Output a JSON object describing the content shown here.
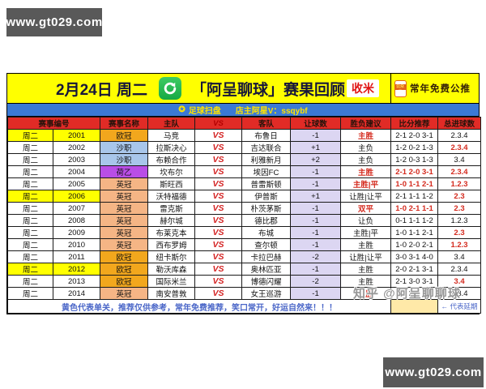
{
  "site": {
    "url_top": "www.gt029.com",
    "url_bottom": "www.gt029.com"
  },
  "header": {
    "date": "2月24日 周二",
    "title": "「阿呈聊球」赛果回顾",
    "shoumi_label": "收米",
    "gzh_label": "公众号",
    "promo_label": "常年免费公推"
  },
  "subheader": {
    "star_glyph": "✪",
    "scan_label": "足球扫盘",
    "owner_label": "店主阿星V：ssqybf"
  },
  "table": {
    "vs_label": "VS",
    "headers": [
      "赛事编号",
      "赛事名称",
      "主队",
      "VS",
      "客队",
      "让球数",
      "胜负建议",
      "比分推荐",
      "总进球数"
    ],
    "rows": [
      {
        "day": "周二",
        "id": "2001",
        "league": "欧冠",
        "league_color": "#f2a71d",
        "home": "马竞",
        "away": "布鲁日",
        "handicap": "-1",
        "advice": "主胜",
        "advice_red": true,
        "score": "2-1 2-0 3-1",
        "score_red": false,
        "goals": "2.3.4",
        "goals_red": false,
        "highlight": true
      },
      {
        "day": "周二",
        "id": "2002",
        "league": "沙职",
        "league_color": "#a8c6ea",
        "home": "拉斯决心",
        "away": "吉达联合",
        "handicap": "+1",
        "advice": "主负",
        "advice_red": false,
        "score": "1-2 0-2 1-3",
        "score_red": false,
        "goals": "2.3.4",
        "goals_red": true,
        "highlight": false
      },
      {
        "day": "周二",
        "id": "2003",
        "league": "沙职",
        "league_color": "#a8c6ea",
        "home": "布赖合作",
        "away": "利雅新月",
        "handicap": "+2",
        "advice": "主负",
        "advice_red": false,
        "score": "1-2 0-3 1-3",
        "score_red": false,
        "goals": "3.4",
        "goals_red": false,
        "highlight": false
      },
      {
        "day": "周二",
        "id": "2004",
        "league": "荷乙",
        "league_color": "#b94ee6",
        "home": "坎布尔",
        "away": "埃因FC",
        "handicap": "-1",
        "advice": "主胜",
        "advice_red": true,
        "score": "2-1 2-0 3-1",
        "score_red": true,
        "goals": "2.3.4",
        "goals_red": true,
        "highlight": false
      },
      {
        "day": "周二",
        "id": "2005",
        "league": "英冠",
        "league_color": "#f5b585",
        "home": "斯旺西",
        "away": "普雷斯顿",
        "handicap": "-1",
        "advice": "主胜|平",
        "advice_red": true,
        "score": "1-0 1-1 2-1",
        "score_red": true,
        "goals": "1.2.3",
        "goals_red": true,
        "highlight": false
      },
      {
        "day": "周二",
        "id": "2006",
        "league": "英冠",
        "league_color": "#f5b585",
        "home": "沃特福德",
        "away": "伊普斯",
        "handicap": "+1",
        "advice": "让胜|让平",
        "advice_red": false,
        "score": "2-1 1-1 1-2",
        "score_red": false,
        "goals": "2.3",
        "goals_red": true,
        "highlight": true
      },
      {
        "day": "周二",
        "id": "2007",
        "league": "英冠",
        "league_color": "#f5b585",
        "home": "雷克斯",
        "away": "朴茨茅斯",
        "handicap": "-1",
        "advice": "双平",
        "advice_red": true,
        "score": "1-0 2-1 1-1",
        "score_red": true,
        "goals": "2.3",
        "goals_red": true,
        "highlight": false
      },
      {
        "day": "周二",
        "id": "2008",
        "league": "英冠",
        "league_color": "#f5b585",
        "home": "赫尔城",
        "away": "德比郡",
        "handicap": "-1",
        "advice": "让负",
        "advice_red": false,
        "score": "0-1 1-1 1-2",
        "score_red": false,
        "goals": "1.2.3",
        "goals_red": false,
        "highlight": false
      },
      {
        "day": "周二",
        "id": "2009",
        "league": "英冠",
        "league_color": "#f5b585",
        "home": "布莱克本",
        "away": "布城",
        "handicap": "-1",
        "advice": "主胜|平",
        "advice_red": false,
        "score": "1-0 1-1 2-1",
        "score_red": false,
        "goals": "2.3",
        "goals_red": true,
        "highlight": false
      },
      {
        "day": "周二",
        "id": "2010",
        "league": "英冠",
        "league_color": "#f5b585",
        "home": "西布罗姆",
        "away": "查尔顿",
        "handicap": "-1",
        "advice": "主胜",
        "advice_red": false,
        "score": "1-0 2-0 2-1",
        "score_red": false,
        "goals": "1.2.3",
        "goals_red": true,
        "highlight": false
      },
      {
        "day": "周二",
        "id": "2011",
        "league": "欧冠",
        "league_color": "#f2a71d",
        "home": "纽卡斯尔",
        "away": "卡拉巴赫",
        "handicap": "-2",
        "advice": "让胜|让平",
        "advice_red": false,
        "score": "3-0 3-1 4-0",
        "score_red": false,
        "goals": "3.4",
        "goals_red": false,
        "highlight": false
      },
      {
        "day": "周二",
        "id": "2012",
        "league": "欧冠",
        "league_color": "#f2a71d",
        "home": "勒沃库森",
        "away": "奥林匹亚",
        "handicap": "-1",
        "advice": "主胜",
        "advice_red": false,
        "score": "2-0 2-1 3-1",
        "score_red": false,
        "goals": "2.3.4",
        "goals_red": false,
        "highlight": true
      },
      {
        "day": "周二",
        "id": "2013",
        "league": "欧冠",
        "league_color": "#f2a71d",
        "home": "国际米兰",
        "away": "博德闪耀",
        "handicap": "-2",
        "advice": "主胜",
        "advice_red": false,
        "score": "2-1 3-0 3-1",
        "score_red": false,
        "goals": "3.4",
        "goals_red": true,
        "highlight": false
      },
      {
        "day": "周二",
        "id": "2014",
        "league": "英冠",
        "league_color": "#f5b585",
        "home": "南安普敦",
        "away": "女王巡游",
        "handicap": "-1",
        "advice": "让胜",
        "advice_red": true,
        "score": "2-0 2-1 3-1",
        "score_red": false,
        "goals": "2.3.4",
        "goals_red": false,
        "highlight": false
      }
    ]
  },
  "footer": {
    "note": "黄色代表单关，推荐仅供参考，常年免费推荐，笑口常开，好运自然来！！！",
    "postpone": "← 代表延期"
  },
  "watermark": "知乎 @阿呈聊聊球"
}
